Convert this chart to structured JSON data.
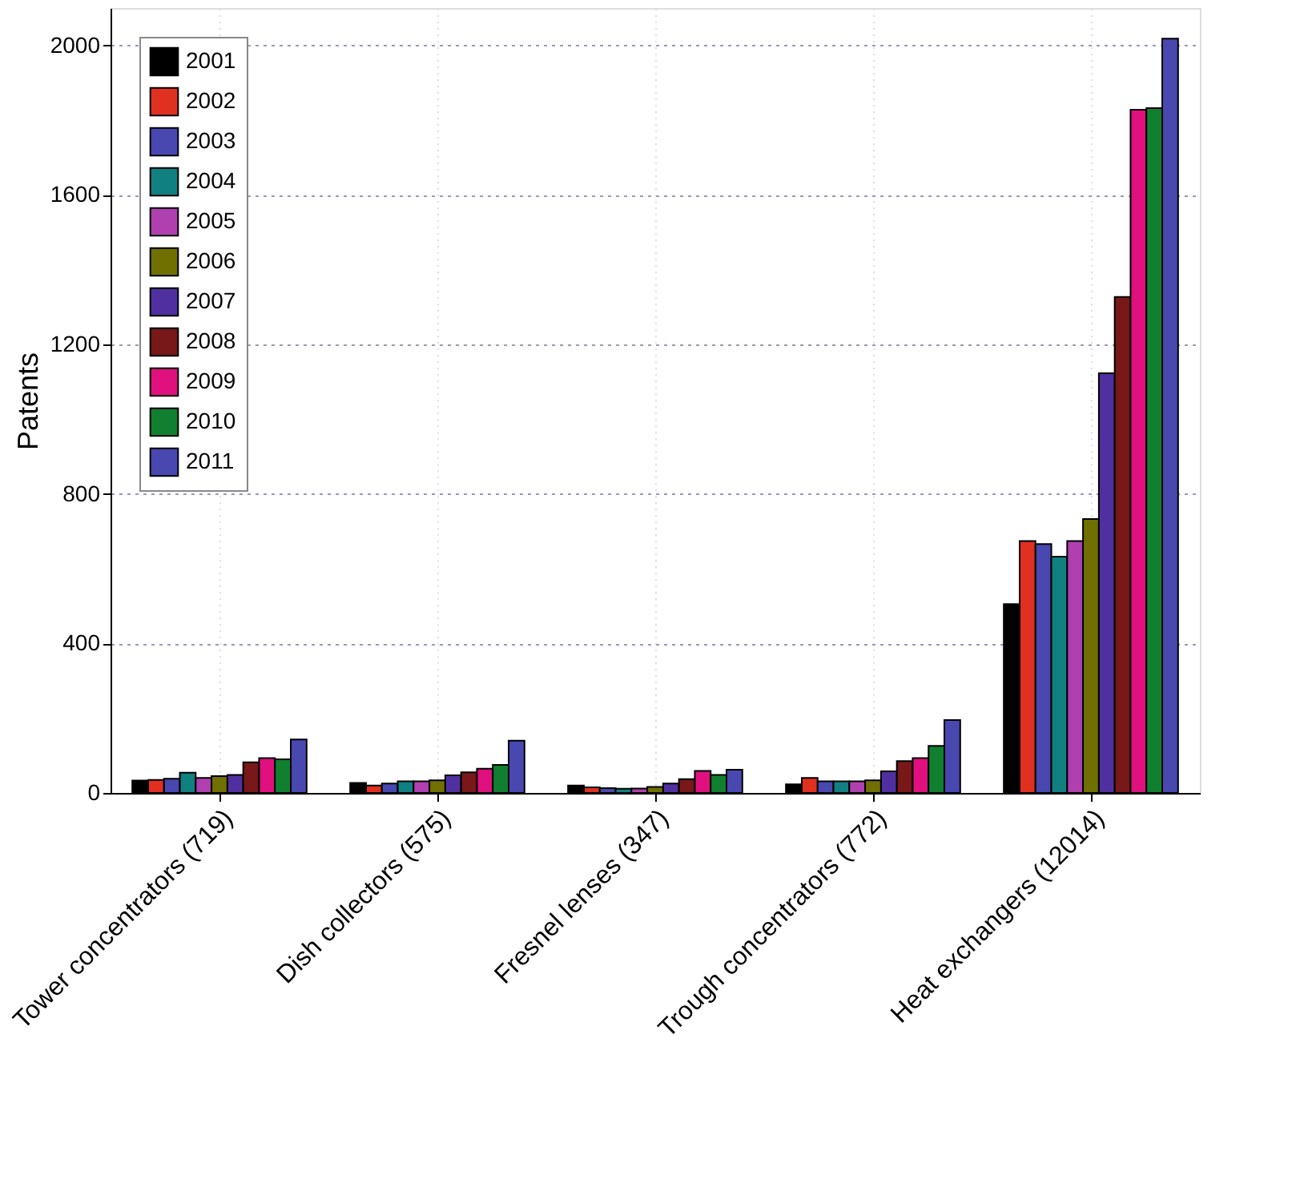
{
  "chart_data": {
    "type": "bar",
    "ylabel": "Patents",
    "categories": [
      "Tower concentrators (719)",
      "Dish collectors (575)",
      "Fresnel lenses (347)",
      "Trough concentrators (772)",
      "Heat exchangers (12014)"
    ],
    "ylim": [
      0,
      2100
    ],
    "yticks": [
      0,
      400,
      800,
      1200,
      1600,
      2000
    ],
    "grid": true,
    "legend": "top left",
    "series": [
      {
        "name": "2001",
        "color": "#000000",
        "values": [
          33,
          27,
          20,
          23,
          505
        ]
      },
      {
        "name": "2002",
        "color": "#e03020",
        "values": [
          35,
          20,
          15,
          40,
          674
        ]
      },
      {
        "name": "2003",
        "color": "#4848b0",
        "values": [
          38,
          25,
          13,
          31,
          666
        ]
      },
      {
        "name": "2004",
        "color": "#108080",
        "values": [
          54,
          31,
          11,
          31,
          632
        ]
      },
      {
        "name": "2005",
        "color": "#b040b0",
        "values": [
          40,
          31,
          12,
          31,
          674
        ]
      },
      {
        "name": "2006",
        "color": "#707000",
        "values": [
          45,
          34,
          16,
          34,
          733
        ]
      },
      {
        "name": "2007",
        "color": "#5030a0",
        "values": [
          48,
          47,
          25,
          58,
          1123
        ]
      },
      {
        "name": "2008",
        "color": "#781818",
        "values": [
          82,
          55,
          37,
          85,
          1327
        ]
      },
      {
        "name": "2009",
        "color": "#e0107f",
        "values": [
          93,
          65,
          59,
          93,
          1828
        ]
      },
      {
        "name": "2010",
        "color": "#108030",
        "values": [
          90,
          75,
          48,
          126,
          1832
        ]
      },
      {
        "name": "2011",
        "color": "#4848b0",
        "values": [
          143,
          140,
          62,
          195,
          2018
        ]
      }
    ]
  }
}
